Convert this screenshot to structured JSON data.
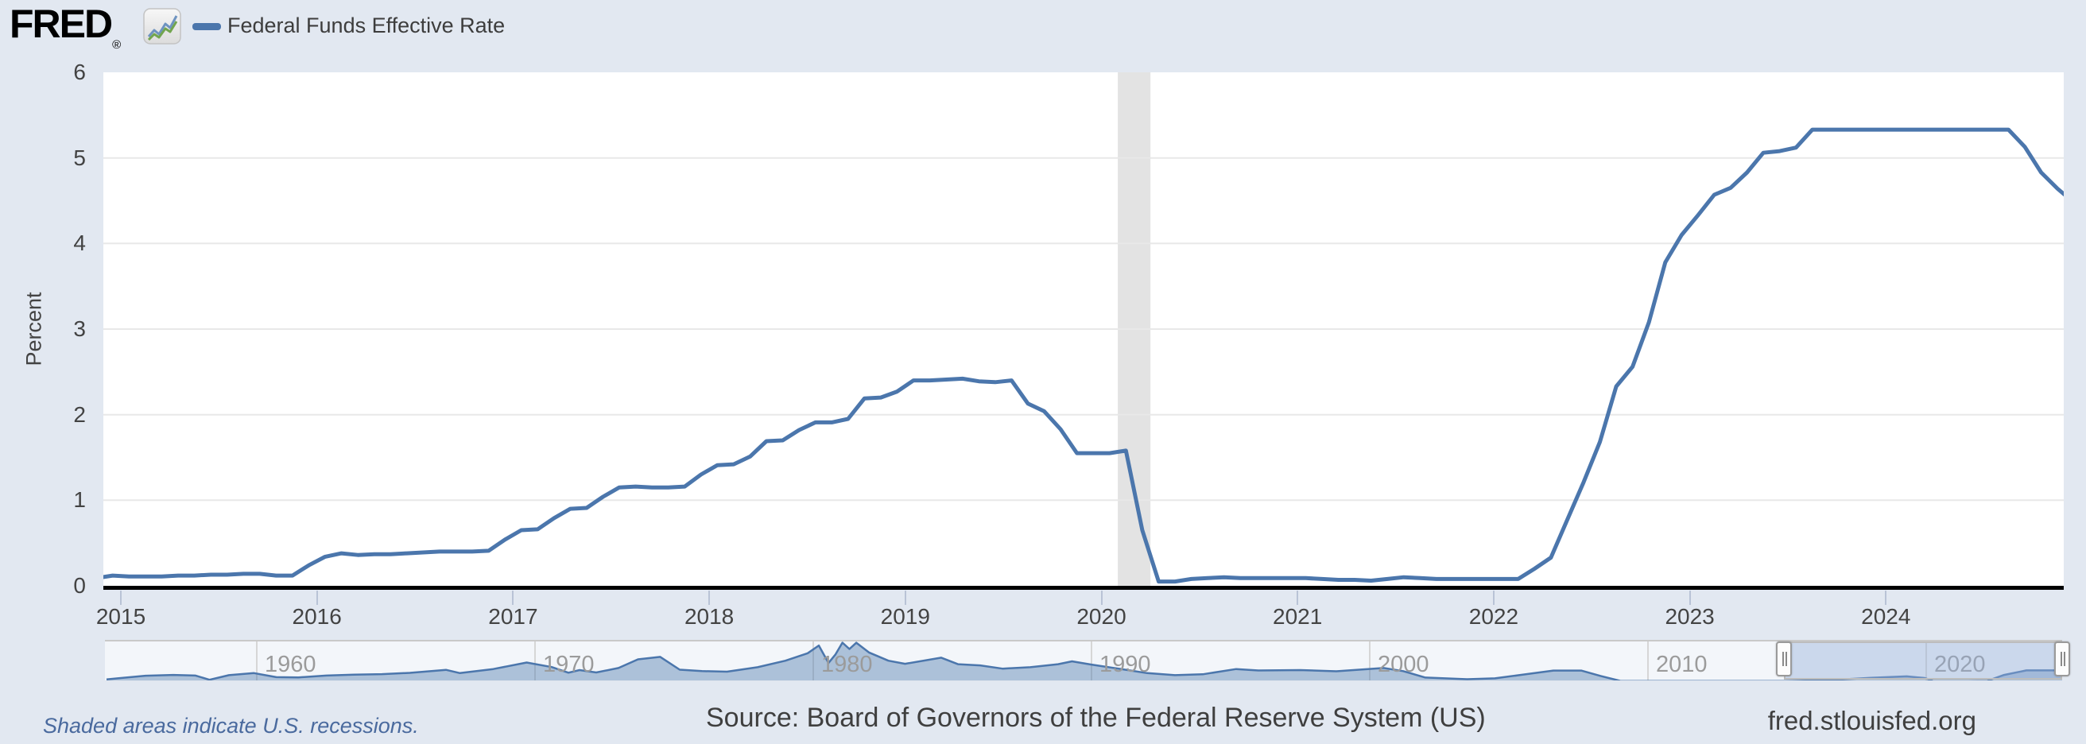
{
  "brand": {
    "logo_text": "FRED",
    "registered_mark": "®"
  },
  "legend": {
    "label": "Federal Funds Effective Rate",
    "swatch_color": "#4b76ac"
  },
  "y_axis": {
    "title": "Percent",
    "ticks": [
      0,
      1,
      2,
      3,
      4,
      5,
      6
    ],
    "min": 0,
    "max": 6
  },
  "x_axis": {
    "ticks": [
      2015,
      2016,
      2017,
      2018,
      2019,
      2020,
      2021,
      2022,
      2023,
      2024
    ]
  },
  "footer": {
    "recession_note": "Shaded areas indicate U.S. recessions.",
    "source": "Source: Board of Governors of the Federal Reserve System (US)",
    "site": "fred.stlouisfed.org"
  },
  "colors": {
    "page_bg": "#e2e8f1",
    "plot_bg": "#ffffff",
    "line": "#4b76ac",
    "grid": "#e8e8e8",
    "recession_band": "#e3e3e3",
    "axis_line": "#000000",
    "tick_text": "#434343",
    "minimap_bg": "#f3f6fa",
    "minimap_fill": "rgba(75,118,172,0.42)",
    "minimap_grid": "#d6d6d6",
    "selection_overlay": "rgba(148,173,217,0.42)",
    "decade_label": "#9b9b9b",
    "footer_note": "#4a6a9e",
    "footer_text": "#3f3f3f"
  },
  "chart_data": {
    "type": "line",
    "title": "Federal Funds Effective Rate",
    "ylabel": "Percent",
    "ylim": [
      0,
      6
    ],
    "x_range": [
      "2014-12",
      "2024-12"
    ],
    "grid": "horizontal",
    "legend_position": "top-left",
    "series": [
      {
        "name": "Federal Funds Effective Rate",
        "units": "Percent",
        "frequency": "monthly",
        "start": "2014-11",
        "values": [
          0.09,
          0.12,
          0.11,
          0.11,
          0.11,
          0.12,
          0.12,
          0.13,
          0.13,
          0.14,
          0.14,
          0.12,
          0.12,
          0.24,
          0.34,
          0.38,
          0.36,
          0.37,
          0.37,
          0.38,
          0.39,
          0.4,
          0.4,
          0.4,
          0.41,
          0.54,
          0.65,
          0.66,
          0.79,
          0.9,
          0.91,
          1.04,
          1.15,
          1.16,
          1.15,
          1.15,
          1.16,
          1.3,
          1.41,
          1.42,
          1.51,
          1.69,
          1.7,
          1.82,
          1.91,
          1.91,
          1.95,
          2.19,
          2.2,
          2.27,
          2.4,
          2.4,
          2.41,
          2.42,
          2.39,
          2.38,
          2.4,
          2.13,
          2.04,
          1.83,
          1.55,
          1.55,
          1.55,
          1.58,
          0.65,
          0.05,
          0.05,
          0.08,
          0.09,
          0.1,
          0.09,
          0.09,
          0.09,
          0.09,
          0.09,
          0.08,
          0.07,
          0.07,
          0.06,
          0.08,
          0.1,
          0.09,
          0.08,
          0.08,
          0.08,
          0.08,
          0.08,
          0.08,
          0.2,
          0.33,
          0.77,
          1.21,
          1.68,
          2.33,
          2.56,
          3.08,
          3.78,
          4.1,
          4.33,
          4.57,
          4.65,
          4.83,
          5.06,
          5.08,
          5.12,
          5.33,
          5.33,
          5.33,
          5.33,
          5.33,
          5.33,
          5.33,
          5.33,
          5.33,
          5.33,
          5.33,
          5.33,
          5.33,
          5.13,
          4.83,
          4.64,
          4.48
        ]
      }
    ],
    "recessions": [
      {
        "start": "2020-02",
        "end": "2020-04"
      }
    ],
    "minimap": {
      "x_labels": [
        1960,
        1970,
        1980,
        1990,
        2000,
        2010,
        2020
      ],
      "full_range": [
        1954.5,
        2024.95
      ],
      "selection": [
        2014.89,
        2024.89
      ],
      "points": [
        [
          1954.6,
          0.9
        ],
        [
          1955,
          1.4
        ],
        [
          1956,
          2.7
        ],
        [
          1957,
          3.1
        ],
        [
          1957.8,
          2.8
        ],
        [
          1958.3,
          0.7
        ],
        [
          1959,
          3.0
        ],
        [
          1959.9,
          4.0
        ],
        [
          1960.7,
          2.0
        ],
        [
          1961.5,
          1.9
        ],
        [
          1962.5,
          2.8
        ],
        [
          1963.5,
          3.2
        ],
        [
          1964.5,
          3.5
        ],
        [
          1965.5,
          4.1
        ],
        [
          1966.8,
          5.6
        ],
        [
          1967.3,
          4.0
        ],
        [
          1968.5,
          6.0
        ],
        [
          1969.7,
          9.2
        ],
        [
          1970.6,
          7.0
        ],
        [
          1971.2,
          4.2
        ],
        [
          1971.6,
          5.5
        ],
        [
          1972.2,
          4.3
        ],
        [
          1973,
          6.5
        ],
        [
          1973.7,
          10.8
        ],
        [
          1974.5,
          12.0
        ],
        [
          1975.2,
          5.7
        ],
        [
          1976,
          5.0
        ],
        [
          1976.9,
          4.7
        ],
        [
          1978,
          6.9
        ],
        [
          1979,
          10.1
        ],
        [
          1979.8,
          13.8
        ],
        [
          1980.2,
          17.6
        ],
        [
          1980.55,
          9.0
        ],
        [
          1980.8,
          13.2
        ],
        [
          1981.05,
          19.1
        ],
        [
          1981.3,
          15.9
        ],
        [
          1981.55,
          19.0
        ],
        [
          1982,
          14.2
        ],
        [
          1982.7,
          10.1
        ],
        [
          1983.3,
          8.6
        ],
        [
          1984.6,
          11.6
        ],
        [
          1985.2,
          8.4
        ],
        [
          1986,
          7.8
        ],
        [
          1986.8,
          6.2
        ],
        [
          1987.8,
          6.9
        ],
        [
          1988.8,
          8.4
        ],
        [
          1989.3,
          9.8
        ],
        [
          1990,
          8.2
        ],
        [
          1991,
          6.1
        ],
        [
          1992,
          4.0
        ],
        [
          1993,
          3.0
        ],
        [
          1994,
          3.4
        ],
        [
          1995.2,
          6.0
        ],
        [
          1996,
          5.3
        ],
        [
          1997.5,
          5.5
        ],
        [
          1998.8,
          4.9
        ],
        [
          2000.5,
          6.5
        ],
        [
          2001.2,
          5.0
        ],
        [
          2002,
          1.8
        ],
        [
          2003.5,
          1.0
        ],
        [
          2004.5,
          1.4
        ],
        [
          2005.5,
          3.2
        ],
        [
          2006.6,
          5.25
        ],
        [
          2007.6,
          5.25
        ],
        [
          2008.3,
          2.6
        ],
        [
          2009,
          0.16
        ],
        [
          2011,
          0.1
        ],
        [
          2013,
          0.1
        ],
        [
          2014.9,
          0.12
        ],
        [
          2016,
          0.4
        ],
        [
          2017,
          0.9
        ],
        [
          2018,
          1.7
        ],
        [
          2019.3,
          2.4
        ],
        [
          2019.95,
          1.55
        ],
        [
          2020.25,
          0.06
        ],
        [
          2021.5,
          0.07
        ],
        [
          2022.2,
          0.2
        ],
        [
          2022.8,
          3.1
        ],
        [
          2023.6,
          5.33
        ],
        [
          2024.6,
          5.33
        ],
        [
          2024.92,
          4.5
        ]
      ]
    }
  }
}
